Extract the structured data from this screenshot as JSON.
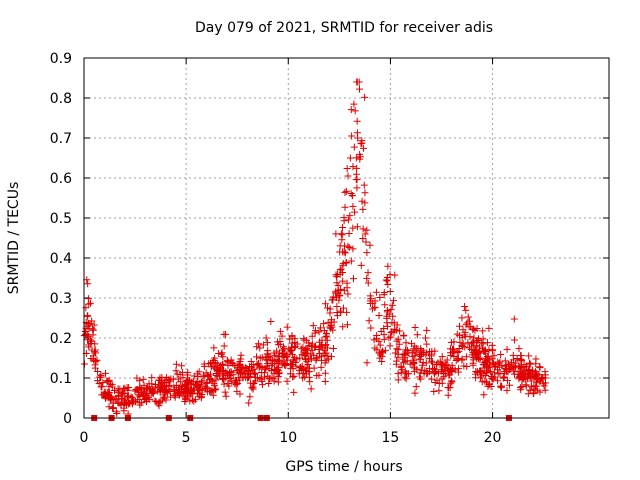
{
  "chart_data": {
    "type": "scatter",
    "title": "Day 079 of 2021, SRMTID for receiver adis",
    "xlabel": "GPS time / hours",
    "ylabel": "SRMTID / TECUs",
    "xlim": [
      0,
      25.7
    ],
    "ylim": [
      0,
      0.9
    ],
    "x_ticks": [
      0,
      5,
      10,
      15,
      20
    ],
    "y_ticks": [
      0,
      0.1,
      0.2,
      0.3,
      0.4,
      0.5,
      0.6,
      0.7,
      0.8,
      0.9
    ],
    "x_tick_labels": [
      "0",
      "5",
      "10",
      "15",
      "20"
    ],
    "y_tick_labels": [
      "0",
      "0.1",
      "0.2",
      "0.3",
      "0.4",
      "0.5",
      "0.6",
      "0.7",
      "0.8",
      "0.9"
    ],
    "grid": true,
    "marker": "plus",
    "color": "#e00000",
    "series": [
      {
        "name": "SRMTID",
        "trend": [
          [
            0.0,
            0.16
          ],
          [
            0.15,
            0.28
          ],
          [
            0.4,
            0.2
          ],
          [
            0.7,
            0.1
          ],
          [
            1.0,
            0.07
          ],
          [
            1.5,
            0.05
          ],
          [
            2.0,
            0.045
          ],
          [
            2.5,
            0.05
          ],
          [
            3.0,
            0.06
          ],
          [
            3.5,
            0.07
          ],
          [
            4.0,
            0.075
          ],
          [
            4.5,
            0.08
          ],
          [
            5.0,
            0.075
          ],
          [
            5.5,
            0.08
          ],
          [
            6.0,
            0.1
          ],
          [
            6.5,
            0.11
          ],
          [
            7.0,
            0.12
          ],
          [
            7.5,
            0.11
          ],
          [
            8.0,
            0.1
          ],
          [
            8.5,
            0.12
          ],
          [
            9.0,
            0.13
          ],
          [
            9.5,
            0.14
          ],
          [
            10.0,
            0.15
          ],
          [
            10.5,
            0.14
          ],
          [
            11.0,
            0.15
          ],
          [
            11.5,
            0.16
          ],
          [
            12.0,
            0.2
          ],
          [
            12.4,
            0.3
          ],
          [
            12.8,
            0.45
          ],
          [
            13.0,
            0.55
          ],
          [
            13.3,
            0.65
          ],
          [
            13.5,
            0.72
          ],
          [
            13.7,
            0.55
          ],
          [
            13.9,
            0.38
          ],
          [
            14.1,
            0.3
          ],
          [
            14.3,
            0.2
          ],
          [
            14.6,
            0.18
          ],
          [
            14.9,
            0.35
          ],
          [
            15.1,
            0.25
          ],
          [
            15.4,
            0.15
          ],
          [
            15.8,
            0.14
          ],
          [
            16.3,
            0.15
          ],
          [
            16.8,
            0.13
          ],
          [
            17.3,
            0.12
          ],
          [
            17.8,
            0.13
          ],
          [
            18.3,
            0.16
          ],
          [
            18.7,
            0.2
          ],
          [
            19.0,
            0.17
          ],
          [
            19.5,
            0.14
          ],
          [
            20.0,
            0.13
          ],
          [
            20.5,
            0.12
          ],
          [
            21.0,
            0.13
          ],
          [
            21.5,
            0.11
          ],
          [
            22.0,
            0.1
          ],
          [
            22.6,
            0.09
          ]
        ],
        "x_range": [
          0.0,
          22.6
        ],
        "n_points": 1400
      }
    ],
    "zero_markers_x": [
      0.5,
      1.35,
      2.15,
      4.15,
      5.2,
      8.65,
      8.95,
      20.8
    ]
  }
}
